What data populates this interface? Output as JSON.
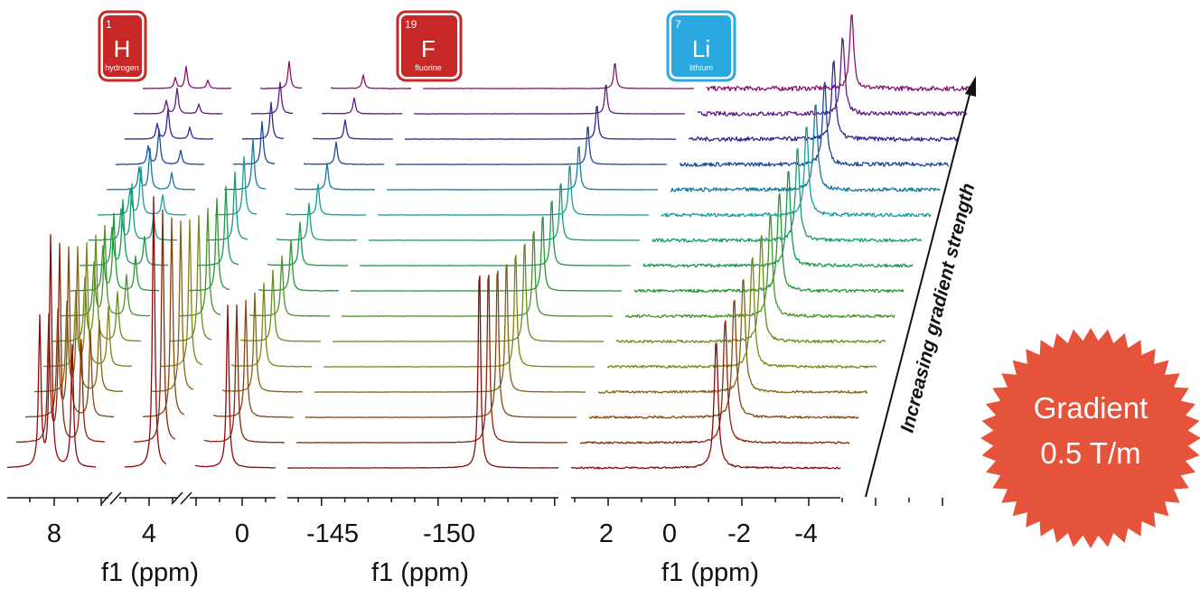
{
  "badge": {
    "line1": "Gradient",
    "line2": "0.5 T/m",
    "color": "#e5533a"
  },
  "arrow_label": "Increasing gradient strength",
  "elements": [
    {
      "number": "1",
      "symbol": "H",
      "name": "hydrogen",
      "color": "#c62828"
    },
    {
      "number": "19",
      "symbol": "F",
      "name": "fluorine",
      "color": "#c62828"
    },
    {
      "number": "7",
      "symbol": "Li",
      "name": "lithium",
      "color": "#29a9e0"
    }
  ],
  "colors": {
    "gradient_start": "#8b0a0a",
    "gradient_mid1": "#7f8a14",
    "gradient_mid2": "#1a9a3a",
    "gradient_mid3": "#12a0a0",
    "gradient_mid4": "#1d2d9b",
    "gradient_end": "#8d1170"
  },
  "chart_data": [
    {
      "type": "line",
      "nucleus": "1H",
      "xlabel": "f1 (ppm)",
      "tick_labels": [
        "8",
        "4",
        "0"
      ],
      "axis_breaks": true,
      "n_spectra": 16,
      "peaks_ppm": [
        8.4,
        7.9,
        7.1,
        3.7,
        2.9,
        0.5
      ],
      "relative_intensity_first": [
        0.55,
        0.85,
        0.45,
        1.0,
        0.25,
        0.6
      ],
      "relative_intensity_last": [
        0.04,
        0.08,
        0.03,
        0.1,
        0.06,
        0.05
      ]
    },
    {
      "type": "line",
      "nucleus": "19F",
      "xlabel": "f1 (ppm)",
      "tick_labels": [
        "-145",
        "-150"
      ],
      "n_spectra": 16,
      "peaks_ppm": [
        -151.3
      ],
      "relative_intensity_first": [
        1.0
      ],
      "relative_intensity_last": [
        0.13
      ]
    },
    {
      "type": "line",
      "nucleus": "7Li",
      "xlabel": "f1 (ppm)",
      "tick_labels": [
        "2",
        "0",
        "-2",
        "-4"
      ],
      "n_spectra": 16,
      "peaks_ppm": [
        -1.3
      ],
      "relative_intensity_first": [
        0.55
      ],
      "relative_intensity_last": [
        0.32
      ]
    }
  ]
}
